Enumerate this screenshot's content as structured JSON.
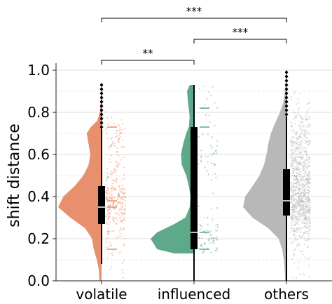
{
  "chart_data": {
    "type": "violin",
    "variant": "half-violin with boxplot and jittered strip (raincloud)",
    "ylabel": "shift distance",
    "xlabel": "",
    "ylim": [
      0.0,
      1.0
    ],
    "y_ticks": [
      0.0,
      0.2,
      0.4,
      0.6,
      0.8,
      1.0
    ],
    "y_tick_labels": [
      "0.0",
      "0.2",
      "0.4",
      "0.6",
      "0.8",
      "1.0"
    ],
    "grid": "horizontal solid at major ticks, dashed at minor ticks",
    "categories": [
      "volatile",
      "influenced",
      "others"
    ],
    "colors": {
      "volatile": "#e8906d",
      "influenced": "#5fa98b",
      "others": "#b8b8b8"
    },
    "series": [
      {
        "category": "volatile",
        "box": {
          "whisker_low": 0.08,
          "q1": 0.27,
          "median": 0.35,
          "q3": 0.45,
          "whisker_high": 0.72
        },
        "outliers": [
          0.73,
          0.75,
          0.77,
          0.79,
          0.81,
          0.83,
          0.85,
          0.87,
          0.89,
          0.91,
          0.93
        ],
        "density": [
          [
            0.0,
            0.05
          ],
          [
            0.05,
            0.06
          ],
          [
            0.1,
            0.11
          ],
          [
            0.15,
            0.18
          ],
          [
            0.2,
            0.22
          ],
          [
            0.25,
            0.38
          ],
          [
            0.3,
            0.72
          ],
          [
            0.35,
            1.0
          ],
          [
            0.4,
            0.88
          ],
          [
            0.45,
            0.62
          ],
          [
            0.5,
            0.42
          ],
          [
            0.55,
            0.3
          ],
          [
            0.6,
            0.26
          ],
          [
            0.65,
            0.3
          ],
          [
            0.7,
            0.34
          ],
          [
            0.73,
            0.25
          ],
          [
            0.76,
            0.1
          ],
          [
            0.8,
            0.04
          ],
          [
            0.85,
            0.02
          ],
          [
            0.9,
            0.01
          ]
        ]
      },
      {
        "category": "influenced",
        "box": {
          "whisker_low": 0.0,
          "q1": 0.15,
          "median": 0.23,
          "q3": 0.73,
          "whisker_high": 0.93
        },
        "outliers": [],
        "density": [
          [
            0.13,
            0.45
          ],
          [
            0.15,
            0.85
          ],
          [
            0.2,
            1.0
          ],
          [
            0.23,
            0.85
          ],
          [
            0.27,
            0.45
          ],
          [
            0.3,
            0.2
          ],
          [
            0.35,
            0.1
          ],
          [
            0.4,
            0.08
          ],
          [
            0.45,
            0.12
          ],
          [
            0.5,
            0.18
          ],
          [
            0.55,
            0.28
          ],
          [
            0.6,
            0.3
          ],
          [
            0.65,
            0.25
          ],
          [
            0.7,
            0.18
          ],
          [
            0.73,
            0.12
          ],
          [
            0.78,
            0.1
          ],
          [
            0.85,
            0.14
          ],
          [
            0.9,
            0.16
          ],
          [
            0.93,
            0.1
          ]
        ]
      },
      {
        "category": "others",
        "box": {
          "whisker_low": 0.0,
          "q1": 0.31,
          "median": 0.38,
          "q3": 0.53,
          "whisker_high": 0.78
        },
        "outliers": [
          0.79,
          0.81,
          0.83,
          0.85,
          0.87,
          0.89,
          0.91,
          0.93,
          0.95,
          0.97,
          0.99
        ],
        "density": [
          [
            0.0,
            0.03
          ],
          [
            0.05,
            0.04
          ],
          [
            0.1,
            0.06
          ],
          [
            0.15,
            0.1
          ],
          [
            0.2,
            0.18
          ],
          [
            0.25,
            0.42
          ],
          [
            0.3,
            0.78
          ],
          [
            0.35,
            1.0
          ],
          [
            0.4,
            0.95
          ],
          [
            0.45,
            0.78
          ],
          [
            0.5,
            0.62
          ],
          [
            0.55,
            0.52
          ],
          [
            0.6,
            0.46
          ],
          [
            0.65,
            0.42
          ],
          [
            0.7,
            0.36
          ],
          [
            0.75,
            0.26
          ],
          [
            0.8,
            0.15
          ],
          [
            0.85,
            0.07
          ],
          [
            0.9,
            0.03
          ],
          [
            0.95,
            0.01
          ]
        ]
      }
    ],
    "annotations": [
      {
        "from": "volatile",
        "to": "influenced",
        "label": "**"
      },
      {
        "from": "influenced",
        "to": "others",
        "label": "***"
      },
      {
        "from": "volatile",
        "to": "others",
        "label": "***"
      }
    ]
  }
}
